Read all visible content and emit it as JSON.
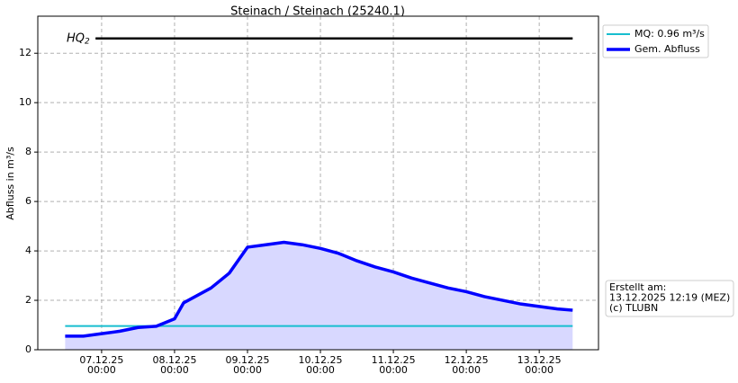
{
  "chart_data": {
    "type": "line",
    "title": "Steinach / Steinach (25240.1)",
    "y_label": "Abfluss in m³/s",
    "xlim": [
      "2025-12-06T03:00",
      "2025-12-13T19:30"
    ],
    "ylim": [
      0,
      13.5
    ],
    "yticks": [
      0,
      2,
      4,
      6,
      8,
      10,
      12
    ],
    "xticks": [
      {
        "value": "2025-12-07T00:00",
        "label": "07.12.25\n00:00"
      },
      {
        "value": "2025-12-08T00:00",
        "label": "08.12.25\n00:00"
      },
      {
        "value": "2025-12-09T00:00",
        "label": "09.12.25\n00:00"
      },
      {
        "value": "2025-12-10T00:00",
        "label": "10.12.25\n00:00"
      },
      {
        "value": "2025-12-11T00:00",
        "label": "11.12.25\n00:00"
      },
      {
        "value": "2025-12-12T00:00",
        "label": "12.12.25\n00:00"
      },
      {
        "value": "2025-12-13T00:00",
        "label": "13.12.25\n00:00"
      }
    ],
    "grid": true,
    "legend": "upper right outside",
    "hq": {
      "label": "HQ",
      "sub": "2",
      "color": "#000000",
      "x": [
        "2025-12-06T22:00",
        "2025-12-13T11:00"
      ],
      "values": [
        12.6,
        12.6
      ]
    },
    "series": [
      {
        "name": "MQ: 0.96 m³/s",
        "color": "#17becf",
        "width": 2,
        "x": [
          "2025-12-06T12:00",
          "2025-12-13T11:00"
        ],
        "values": [
          0.96,
          0.96
        ]
      },
      {
        "name": "Gem. Abfluss",
        "color": "#0000ff",
        "width": 3.5,
        "fill_color": "#d8d8ff",
        "x": [
          "2025-12-06T12:00",
          "2025-12-06T18:00",
          "2025-12-07T00:00",
          "2025-12-07T06:00",
          "2025-12-07T12:00",
          "2025-12-07T18:00",
          "2025-12-08T00:00",
          "2025-12-08T03:00",
          "2025-12-08T06:00",
          "2025-12-08T12:00",
          "2025-12-08T18:00",
          "2025-12-09T00:00",
          "2025-12-09T06:00",
          "2025-12-09T12:00",
          "2025-12-09T18:00",
          "2025-12-10T00:00",
          "2025-12-10T06:00",
          "2025-12-10T12:00",
          "2025-12-10T18:00",
          "2025-12-11T00:00",
          "2025-12-11T06:00",
          "2025-12-11T12:00",
          "2025-12-11T18:00",
          "2025-12-12T00:00",
          "2025-12-12T06:00",
          "2025-12-12T12:00",
          "2025-12-12T18:00",
          "2025-12-13T00:00",
          "2025-12-13T06:00",
          "2025-12-13T11:00"
        ],
        "values": [
          0.55,
          0.55,
          0.65,
          0.75,
          0.9,
          0.95,
          1.25,
          1.9,
          2.1,
          2.5,
          3.1,
          4.15,
          4.25,
          4.35,
          4.25,
          4.1,
          3.9,
          3.6,
          3.35,
          3.15,
          2.9,
          2.7,
          2.5,
          2.35,
          2.15,
          2.0,
          1.85,
          1.75,
          1.65,
          1.6
        ]
      }
    ],
    "info": [
      "Erstellt am:",
      "13.12.2025 12:19 (MEZ)",
      "(c) TLUBN"
    ]
  }
}
